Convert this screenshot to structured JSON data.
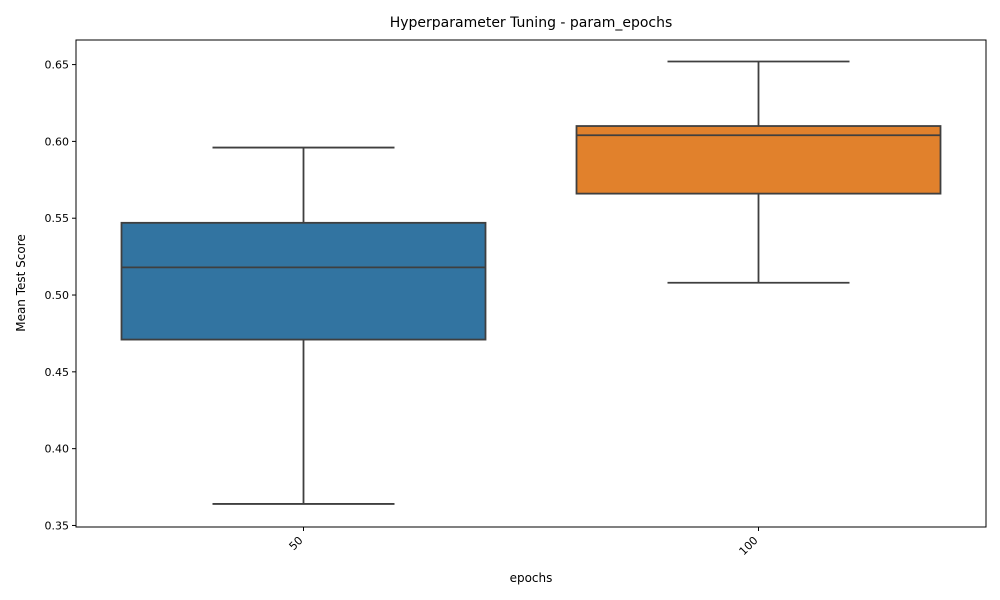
{
  "chart_data": {
    "type": "box",
    "title": "Hyperparameter Tuning - param_epochs",
    "xlabel": "epochs",
    "ylabel": "Mean Test Score",
    "categories": [
      "50",
      "100"
    ],
    "ylim": [
      0.349,
      0.666
    ],
    "yticks": [
      "0.35",
      "0.40",
      "0.45",
      "0.50",
      "0.55",
      "0.60",
      "0.65"
    ],
    "grid": false,
    "boxes": [
      {
        "category": "50",
        "whisker_low": 0.364,
        "q1": 0.471,
        "median": 0.518,
        "q3": 0.547,
        "whisker_high": 0.596,
        "color": "#3274a1"
      },
      {
        "category": "100",
        "whisker_low": 0.508,
        "q1": 0.566,
        "median": 0.604,
        "q3": 0.61,
        "whisker_high": 0.652,
        "color": "#e1812c"
      }
    ]
  }
}
